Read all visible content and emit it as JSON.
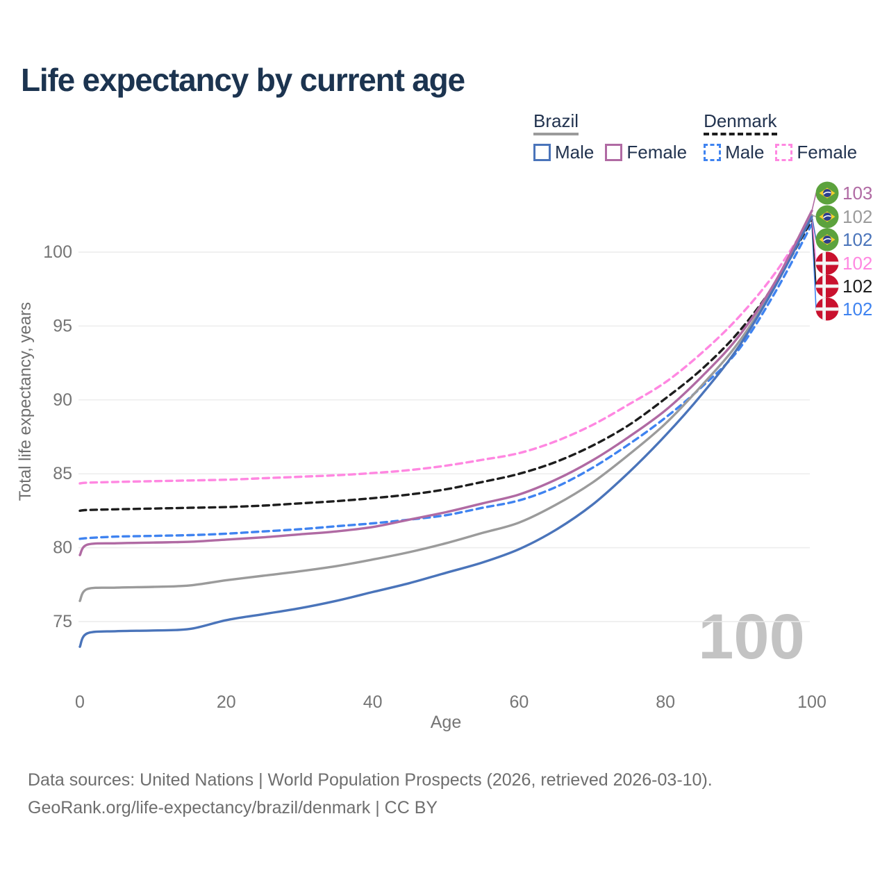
{
  "title": "Life expectancy by current age",
  "legend": {
    "groups": [
      {
        "label": "Brazil",
        "underline_color": "#9b9b9b",
        "underline_style": "solid",
        "items": [
          {
            "label": "Male",
            "color": "#4a74ba",
            "dashed": false
          },
          {
            "label": "Female",
            "color": "#b06aa3",
            "dashed": false
          }
        ]
      },
      {
        "label": "Denmark",
        "underline_color": "#1d1d1d",
        "underline_style": "dashed",
        "items": [
          {
            "label": "Male",
            "color": "#3f83f0",
            "dashed": true
          },
          {
            "label": "Female",
            "color": "#ff87e1",
            "dashed": true
          }
        ]
      }
    ]
  },
  "footer": {
    "line1": "Data sources: United Nations | World Population Prospects (2026, retrieved 2026-03-10).",
    "line2": "GeoRank.org/life-expectancy/brazil/denmark | CC BY"
  },
  "chart_data": {
    "type": "line",
    "title": "Life expectancy by current age",
    "xlabel": "Age",
    "ylabel": "Total life expectancy, years",
    "xlim": [
      0,
      100
    ],
    "ylim": [
      73,
      103.5
    ],
    "xticks": [
      0,
      20,
      40,
      60,
      80,
      100
    ],
    "yticks": [
      75,
      80,
      85,
      90,
      95,
      100
    ],
    "grid": "horizontal",
    "legend_position": "top-right",
    "watermark": "100",
    "x": [
      0,
      1,
      5,
      10,
      15,
      20,
      25,
      30,
      35,
      40,
      45,
      50,
      55,
      60,
      65,
      70,
      75,
      80,
      85,
      90,
      95,
      100
    ],
    "series": [
      {
        "name": "Denmark Male",
        "country": "Denmark",
        "sex": "Male",
        "flag": "denmark",
        "color": "#3f83f0",
        "dashed": true,
        "end_label": "102",
        "label_row": 5,
        "values": [
          80.6,
          80.65,
          80.75,
          80.8,
          80.85,
          80.95,
          81.1,
          81.25,
          81.45,
          81.65,
          81.9,
          82.2,
          82.7,
          83.2,
          84.1,
          85.4,
          87.0,
          88.8,
          90.9,
          93.4,
          97.3,
          101.9
        ]
      },
      {
        "name": "Denmark Total",
        "country": "Denmark",
        "sex": "Both",
        "flag": "denmark",
        "color": "#1d1d1d",
        "dashed": true,
        "end_label": "102",
        "label_row": 4,
        "values": [
          82.5,
          82.55,
          82.6,
          82.65,
          82.7,
          82.75,
          82.85,
          83.0,
          83.15,
          83.35,
          83.6,
          83.95,
          84.45,
          85.0,
          85.8,
          86.9,
          88.3,
          90.1,
          92.1,
          94.6,
          97.9,
          102.2
        ]
      },
      {
        "name": "Denmark Female",
        "country": "Denmark",
        "sex": "Female",
        "flag": "denmark",
        "color": "#ff87e1",
        "dashed": true,
        "end_label": "102",
        "label_row": 3,
        "values": [
          84.35,
          84.4,
          84.45,
          84.5,
          84.55,
          84.6,
          84.7,
          84.8,
          84.9,
          85.05,
          85.25,
          85.55,
          85.95,
          86.4,
          87.2,
          88.3,
          89.7,
          91.2,
          93.2,
          95.6,
          98.6,
          102.4
        ]
      },
      {
        "name": "Brazil Total",
        "country": "Brazil",
        "sex": "Both",
        "flag": "brazil",
        "color": "#9b9b9b",
        "dashed": false,
        "end_label": "102",
        "label_row": 1,
        "values": [
          76.4,
          77.2,
          77.3,
          77.35,
          77.45,
          77.8,
          78.1,
          78.4,
          78.75,
          79.2,
          79.7,
          80.3,
          81.0,
          81.7,
          82.9,
          84.4,
          86.3,
          88.4,
          91.0,
          93.9,
          97.8,
          102.5
        ]
      },
      {
        "name": "Brazil Male",
        "country": "Brazil",
        "sex": "Male",
        "flag": "brazil",
        "color": "#4a74ba",
        "dashed": false,
        "end_label": "102",
        "label_row": 2,
        "values": [
          73.3,
          74.2,
          74.35,
          74.4,
          74.5,
          75.1,
          75.5,
          75.9,
          76.4,
          77.0,
          77.6,
          78.3,
          79.0,
          79.9,
          81.2,
          82.9,
          85.1,
          87.6,
          90.4,
          93.6,
          97.7,
          102.4
        ]
      },
      {
        "name": "Brazil Female",
        "country": "Brazil",
        "sex": "Female",
        "flag": "brazil",
        "color": "#b06aa3",
        "dashed": false,
        "end_label": "103",
        "label_row": 0,
        "values": [
          79.5,
          80.2,
          80.3,
          80.35,
          80.4,
          80.55,
          80.7,
          80.9,
          81.1,
          81.4,
          81.9,
          82.4,
          83.0,
          83.6,
          84.6,
          85.9,
          87.5,
          89.3,
          91.6,
          94.3,
          98.0,
          102.8
        ]
      }
    ]
  }
}
